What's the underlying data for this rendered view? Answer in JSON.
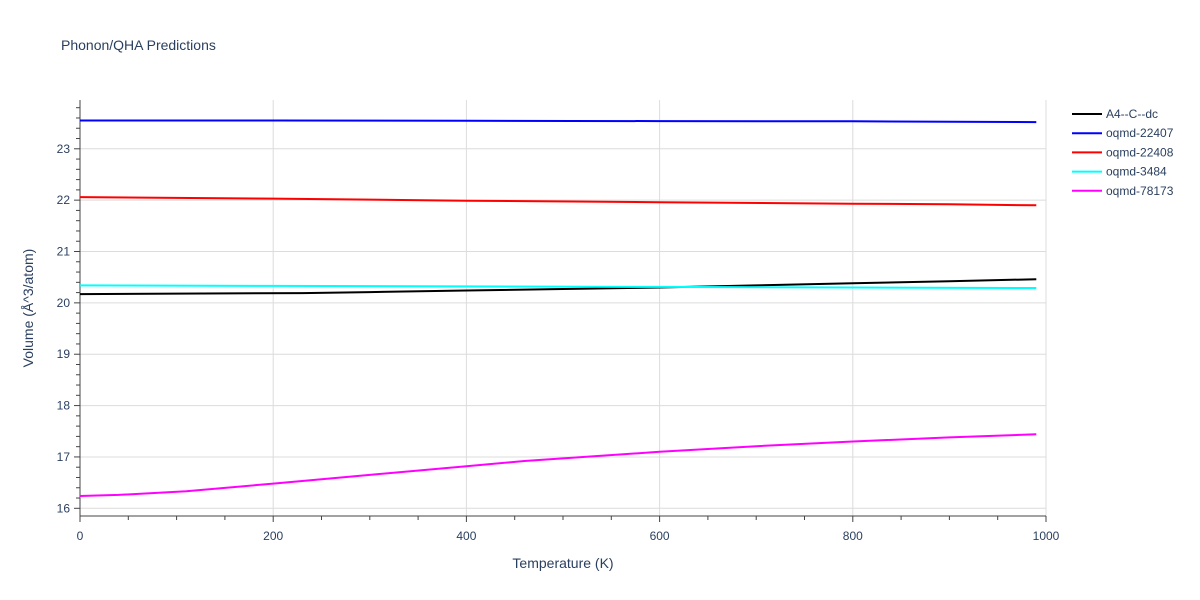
{
  "chart_data": {
    "type": "line",
    "title": "Phonon/QHA Predictions",
    "xlabel": "Temperature (K)",
    "ylabel": "Volume (Å^3/atom)",
    "xlim": [
      0,
      1000
    ],
    "ylim": [
      15.85,
      23.95
    ],
    "xticks": [
      0,
      200,
      400,
      600,
      800,
      1000
    ],
    "yticks": [
      16,
      17,
      18,
      19,
      20,
      21,
      22,
      23
    ],
    "grid": true,
    "legend_position": "top-right, outside plot",
    "series": [
      {
        "name": "A4--C--dc",
        "color": "#000000",
        "x": [
          0,
          100,
          230,
          300,
          400,
          500,
          600,
          700,
          800,
          900,
          990
        ],
        "y": [
          20.17,
          20.18,
          20.19,
          20.21,
          20.24,
          20.27,
          20.3,
          20.34,
          20.38,
          20.42,
          20.46
        ]
      },
      {
        "name": "oqmd-22407",
        "color": "#0000ff",
        "x": [
          0,
          200,
          400,
          600,
          800,
          990
        ],
        "y": [
          23.55,
          23.55,
          23.545,
          23.54,
          23.535,
          23.52
        ]
      },
      {
        "name": "oqmd-22408",
        "color": "#ff0000",
        "x": [
          0,
          200,
          400,
          600,
          800,
          900,
          990
        ],
        "y": [
          22.06,
          22.03,
          21.99,
          21.96,
          21.93,
          21.92,
          21.9
        ]
      },
      {
        "name": "oqmd-3484",
        "color": "#00ffff",
        "x": [
          0,
          200,
          400,
          600,
          800,
          990
        ],
        "y": [
          20.34,
          20.33,
          20.32,
          20.31,
          20.3,
          20.29
        ]
      },
      {
        "name": "oqmd-78173",
        "color": "#ff00ff",
        "x": [
          0,
          40,
          110,
          200,
          300,
          400,
          460,
          600,
          700,
          800,
          900,
          990
        ],
        "y": [
          16.24,
          16.26,
          16.33,
          16.48,
          16.65,
          16.82,
          16.92,
          17.1,
          17.21,
          17.3,
          17.38,
          17.44
        ]
      }
    ]
  }
}
